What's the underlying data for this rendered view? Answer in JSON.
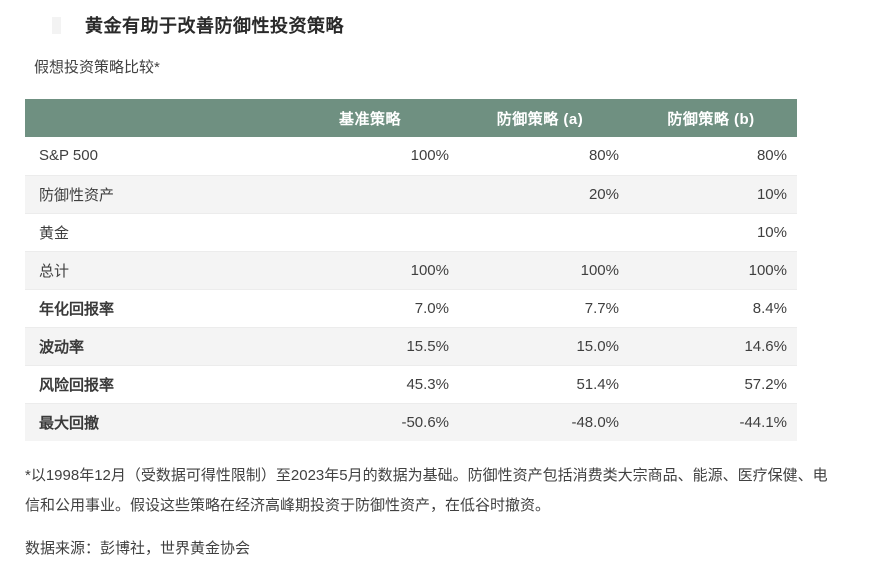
{
  "page": {
    "title": "黄金有助于改善防御性投资策略",
    "subtitle": "假想投资策略比较*"
  },
  "chart_data": {
    "type": "table",
    "title": "黄金有助于改善防御性投资策略",
    "subtitle": "假想投资策略比较*",
    "columns": [
      "",
      "基准策略",
      "防御策略 (a)",
      "防御策略 (b)"
    ],
    "rows": [
      [
        "S&P 500",
        "100%",
        "80%",
        "80%"
      ],
      [
        "防御性资产",
        "",
        "20%",
        "10%"
      ],
      [
        "黄金",
        "",
        "",
        "10%"
      ],
      [
        "总计",
        "100%",
        "100%",
        "100%"
      ],
      [
        "年化回报率",
        "7.0%",
        "7.7%",
        "8.4%"
      ],
      [
        "波动率",
        "15.5%",
        "15.0%",
        "14.6%"
      ],
      [
        "风险回报率",
        "45.3%",
        "51.4%",
        "57.2%"
      ],
      [
        "最大回撤",
        "-50.6%",
        "-48.0%",
        "-44.1%"
      ]
    ],
    "layout_hints": {
      "header_alignment": "center",
      "value_alignment": "right",
      "striped_rows": true,
      "bold_label_rows": [
        4,
        5,
        6,
        7
      ]
    }
  },
  "footnote": "*以1998年12月（受数据可得性限制）至2023年5月的数据为基础。防御性资产包括消费类大宗商品、能源、医疗保健、电信和公用事业。假设这些策略在经济高峰期投资于防御性资产，在低谷时撤资。",
  "source": "数据来源：彭博社，世界黄金协会",
  "colors": {
    "header_bg": "#6f9081",
    "header_text": "#ffffff",
    "stripe_bg": "#f4f4f4",
    "body_text": "#3f3f3f",
    "title_text": "#2a2a2a",
    "page_bg": "#ffffff"
  }
}
